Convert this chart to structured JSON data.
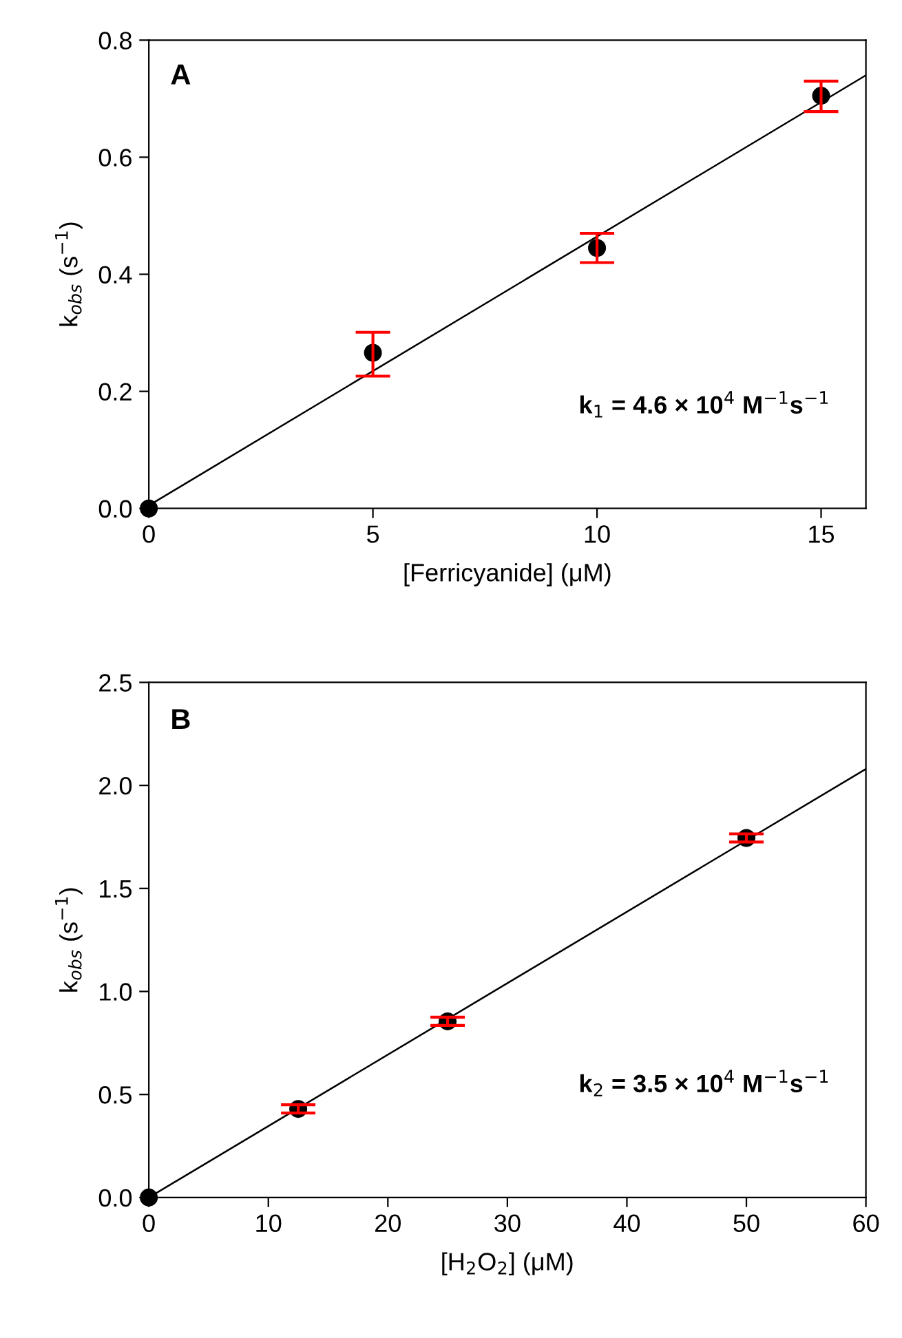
{
  "chart_data": [
    {
      "type": "scatter",
      "xlabel": "[Ferricyanide] (μM)",
      "ylabel": "k$_{obs}$ (s$^{−1}$)",
      "annotations": [
        "A",
        "k$_{1}$ = 4.6 × 10$^{4}$ M$^{−1}$s$^{−1}$"
      ],
      "xlim": [
        0,
        16
      ],
      "ylim": [
        0,
        0.8
      ],
      "xticks": [
        0,
        5,
        10,
        15
      ],
      "yticks": [
        {
          "value": 0,
          "label": "0.0"
        },
        0.2,
        0.4,
        0.6,
        0.8
      ],
      "grid": false,
      "series": [
        {
          "color": "#000000",
          "marker": "circle",
          "x": [
            0,
            5,
            10,
            15
          ],
          "values": [
            0.0,
            0.266,
            0.445,
            0.705
          ],
          "errors": [
            null,
            [
              0.226,
              0.301
            ],
            [
              0.42,
              0.47
            ],
            [
              0.678,
              0.73
            ]
          ]
        },
        {
          "type": "line",
          "marker": "none",
          "color": "#000000",
          "x": [
            0,
            16
          ],
          "values": [
            0.005,
            0.74
          ]
        }
      ]
    },
    {
      "type": "scatter",
      "xlabel": "[H$_{2}$O$_{2}$] (μM)",
      "ylabel": "k$_{obs}$ (s$^{−1}$)",
      "annotations": [
        "B",
        "k$_{2}$ = 3.5 × 10$^{4}$ M$^{−1}$s$^{−1}$"
      ],
      "xlim": [
        0,
        60
      ],
      "ylim": [
        0,
        2.5
      ],
      "xticks": [
        0,
        10,
        20,
        30,
        40,
        50,
        60
      ],
      "yticks": [
        {
          "value": 0,
          "label": "0.0"
        },
        0.5,
        {
          "value": 1,
          "label": "1.0"
        },
        1.5,
        {
          "value": 2,
          "label": "2.0"
        },
        2.5
      ],
      "grid": false,
      "series": [
        {
          "color": "#000000",
          "marker": "circle",
          "x": [
            0,
            12.5,
            25,
            50
          ],
          "values": [
            0.0,
            0.43,
            0.855,
            1.745
          ],
          "errors": [
            null,
            0.02,
            0.02,
            0.02
          ]
        },
        {
          "type": "line",
          "marker": "none",
          "color": "#000000",
          "x": [
            0,
            60
          ],
          "values": [
            0.0,
            2.08
          ]
        }
      ]
    }
  ]
}
